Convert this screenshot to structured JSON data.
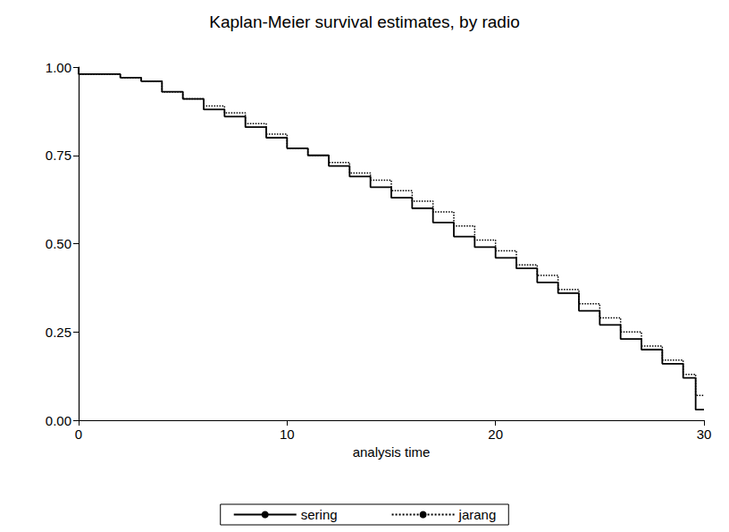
{
  "chart_data": {
    "type": "line",
    "title": "Kaplan-Meier survival estimates, by radio",
    "x_label": "analysis time",
    "x": [
      0,
      0,
      1,
      2,
      3,
      4,
      5,
      6,
      7,
      8,
      9,
      10,
      11,
      12,
      13,
      14,
      15,
      16,
      17,
      18,
      19,
      20,
      21,
      22,
      23,
      24,
      25,
      26,
      27,
      28,
      29,
      29.6,
      30
    ],
    "series": [
      {
        "name": "sering",
        "color": "#000000",
        "line_style": "solid",
        "values": [
          1.0,
          0.98,
          0.98,
          0.97,
          0.96,
          0.93,
          0.91,
          0.88,
          0.86,
          0.83,
          0.8,
          0.77,
          0.75,
          0.72,
          0.69,
          0.66,
          0.63,
          0.6,
          0.56,
          0.52,
          0.49,
          0.46,
          0.43,
          0.39,
          0.36,
          0.31,
          0.27,
          0.23,
          0.2,
          0.16,
          0.12,
          0.03,
          0.03
        ]
      },
      {
        "name": "jarang",
        "color": "#000000",
        "line_style": "dotted",
        "values": [
          1.0,
          0.98,
          0.98,
          0.97,
          0.96,
          0.93,
          0.91,
          0.89,
          0.87,
          0.84,
          0.81,
          0.77,
          0.75,
          0.73,
          0.7,
          0.68,
          0.65,
          0.62,
          0.59,
          0.55,
          0.51,
          0.48,
          0.44,
          0.41,
          0.37,
          0.33,
          0.29,
          0.25,
          0.21,
          0.17,
          0.13,
          0.07,
          0.07
        ]
      }
    ],
    "xlim": [
      0,
      30
    ],
    "xticks": [
      0,
      10,
      20,
      30
    ],
    "ylim": [
      0,
      1
    ],
    "yticks": [
      {
        "value": 0,
        "label": "0.00"
      },
      {
        "value": 0.25,
        "label": "0.25"
      },
      {
        "value": 0.5,
        "label": "0.50"
      },
      {
        "value": 0.75,
        "label": "0.75"
      },
      {
        "value": 1,
        "label": "1.00"
      }
    ],
    "grid": false,
    "legend": "bottom"
  }
}
